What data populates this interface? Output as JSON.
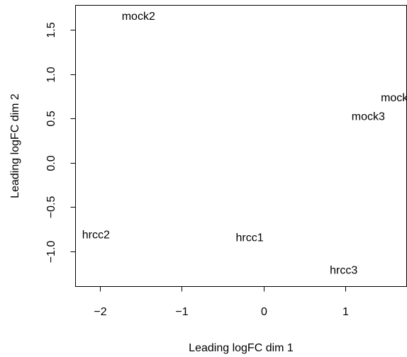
{
  "chart_data": {
    "type": "scatter",
    "title": "",
    "xlabel": "Leading logFC dim 1",
    "ylabel": "Leading logFC dim 2",
    "xlim": [
      -2.3,
      1.75
    ],
    "ylim": [
      -1.4,
      1.78
    ],
    "x_ticks": [
      -2,
      -1,
      0,
      1
    ],
    "x_tick_labels": [
      "−2",
      "−1",
      "0",
      "1"
    ],
    "y_ticks": [
      -1.0,
      -0.5,
      0.0,
      0.5,
      1.0,
      1.5
    ],
    "y_tick_labels": [
      "−1.0",
      "−0.5",
      "0.0",
      "0.5",
      "1.0",
      "1.5"
    ],
    "grid": false,
    "points": [
      {
        "label": "mock2",
        "x": -1.53,
        "y": 1.65
      },
      {
        "label": "mock",
        "x": 1.6,
        "y": 0.73
      },
      {
        "label": "mock3",
        "x": 1.28,
        "y": 0.52
      },
      {
        "label": "hrcc2",
        "x": -2.05,
        "y": -0.82
      },
      {
        "label": "hrcc1",
        "x": -0.17,
        "y": -0.85
      },
      {
        "label": "hrcc3",
        "x": 0.98,
        "y": -1.22
      }
    ]
  }
}
